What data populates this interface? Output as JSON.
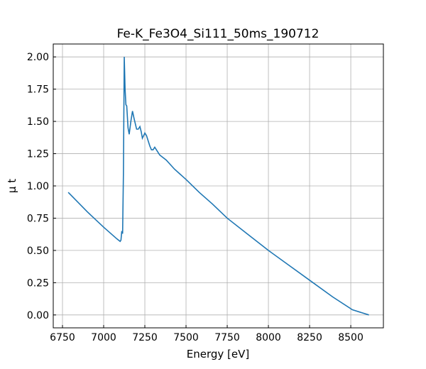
{
  "chart_data": {
    "type": "line",
    "title": "Fe-K_Fe3O4_Si111_50ms_190712",
    "x_label": "Energy [eV]",
    "y_label": "μ t",
    "x": [
      6785,
      6900,
      7000,
      7080,
      7100,
      7105,
      7110,
      7115,
      7120,
      7125,
      7130,
      7135,
      7140,
      7148,
      7155,
      7165,
      7175,
      7185,
      7200,
      7210,
      7220,
      7228,
      7235,
      7243,
      7250,
      7260,
      7270,
      7280,
      7290,
      7300,
      7310,
      7320,
      7340,
      7380,
      7430,
      7500,
      7580,
      7660,
      7750,
      7880,
      8000,
      8130,
      8260,
      8390,
      8510,
      8610
    ],
    "series": [
      {
        "name": "Fe-K",
        "color": "#1f77b4",
        "values": [
          0.95,
          0.8,
          0.68,
          0.59,
          0.57,
          0.58,
          0.65,
          0.63,
          1.1,
          2.0,
          1.75,
          1.63,
          1.62,
          1.45,
          1.4,
          1.5,
          1.58,
          1.52,
          1.44,
          1.44,
          1.46,
          1.42,
          1.37,
          1.39,
          1.41,
          1.39,
          1.35,
          1.31,
          1.28,
          1.28,
          1.3,
          1.28,
          1.24,
          1.2,
          1.13,
          1.05,
          0.95,
          0.86,
          0.75,
          0.62,
          0.5,
          0.38,
          0.26,
          0.14,
          0.04,
          0.0
        ]
      }
    ],
    "xlim": [
      6694,
      8698
    ],
    "ylim": [
      -0.1,
      2.1
    ],
    "xticks": [
      6750,
      7000,
      7250,
      7500,
      7750,
      8000,
      8250,
      8500
    ],
    "yticks": [
      {
        "value": 0,
        "label": "0.00"
      },
      {
        "value": 0.25,
        "label": "0.25"
      },
      {
        "value": 0.5,
        "label": "0.50"
      },
      {
        "value": 0.75,
        "label": "0.75"
      },
      {
        "value": 1,
        "label": "1.00"
      },
      {
        "value": 1.25,
        "label": "1.25"
      },
      {
        "value": 1.5,
        "label": "1.50"
      },
      {
        "value": 1.75,
        "label": "1.75"
      },
      {
        "value": 2,
        "label": "2.00"
      }
    ],
    "grid": true
  }
}
